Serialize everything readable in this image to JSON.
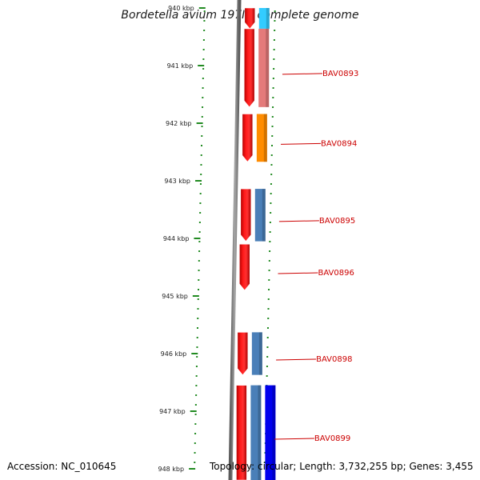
{
  "title": "Bordetella avium 197N, complete genome",
  "footer": {
    "accession": "Accession: NC_010645",
    "summary": "Topology: circular; Length: 3,732,255 bp; Genes: 3,455"
  },
  "ticks": [
    "940 kbp",
    "941 kbp",
    "942 kbp",
    "943 kbp",
    "944 kbp",
    "945 kbp",
    "946 kbp",
    "947 kbp",
    "948 kbp"
  ],
  "genes": [
    {
      "label": "",
      "start_kbp": 940.0,
      "end_kbp": 940.36,
      "strand": "forward",
      "color": "#ff2020"
    },
    {
      "label": "",
      "start_kbp": 940.0,
      "end_kbp": 940.36,
      "strand": "forward",
      "color": "#33ccff"
    },
    {
      "label": "BAV0893",
      "start_kbp": 940.36,
      "end_kbp": 941.72,
      "strand": "forward",
      "color": "#ff2020"
    },
    {
      "label": "BAV0893",
      "start_kbp": 940.36,
      "end_kbp": 941.72,
      "strand": "forward",
      "color": "#e47a7a"
    },
    {
      "label": "BAV0894",
      "start_kbp": 941.84,
      "end_kbp": 942.67,
      "strand": "forward",
      "color": "#ff2020"
    },
    {
      "label": "BAV0894",
      "start_kbp": 941.84,
      "end_kbp": 942.67,
      "strand": "forward",
      "color": "#ff8c00"
    },
    {
      "label": "BAV0895",
      "start_kbp": 943.14,
      "end_kbp": 944.05,
      "strand": "forward",
      "color": "#ff2020"
    },
    {
      "label": "BAV0895",
      "start_kbp": 943.14,
      "end_kbp": 944.05,
      "strand": "forward",
      "color": "#4a7fb8"
    },
    {
      "label": "BAV0896",
      "start_kbp": 944.1,
      "end_kbp": 944.9,
      "strand": "forward",
      "color": "#ff2020"
    },
    {
      "label": "BAV0898",
      "start_kbp": 945.63,
      "end_kbp": 946.37,
      "strand": "forward",
      "color": "#ff2020"
    },
    {
      "label": "BAV0898",
      "start_kbp": 945.63,
      "end_kbp": 946.37,
      "strand": "forward",
      "color": "#4a7fb8"
    },
    {
      "label": "BAV0899",
      "start_kbp": 946.55,
      "end_kbp": 948.2,
      "strand": "forward",
      "color": "#ff2020"
    },
    {
      "label": "BAV0899",
      "start_kbp": 946.55,
      "end_kbp": 948.2,
      "strand": "forward",
      "color": "#4a7fb8"
    },
    {
      "label": "BAV0899",
      "start_kbp": 946.55,
      "end_kbp": 948.2,
      "strand": "forward",
      "color": "#0000ee"
    }
  ],
  "gene_labels": [
    "BAV0893",
    "BAV0894",
    "BAV0895",
    "BAV0896",
    "BAV0898",
    "BAV0899"
  ],
  "colors": {
    "backbone": "#808080",
    "ticks": "#228b22",
    "label_text": "#cc0000",
    "cds": "#ff2020"
  }
}
